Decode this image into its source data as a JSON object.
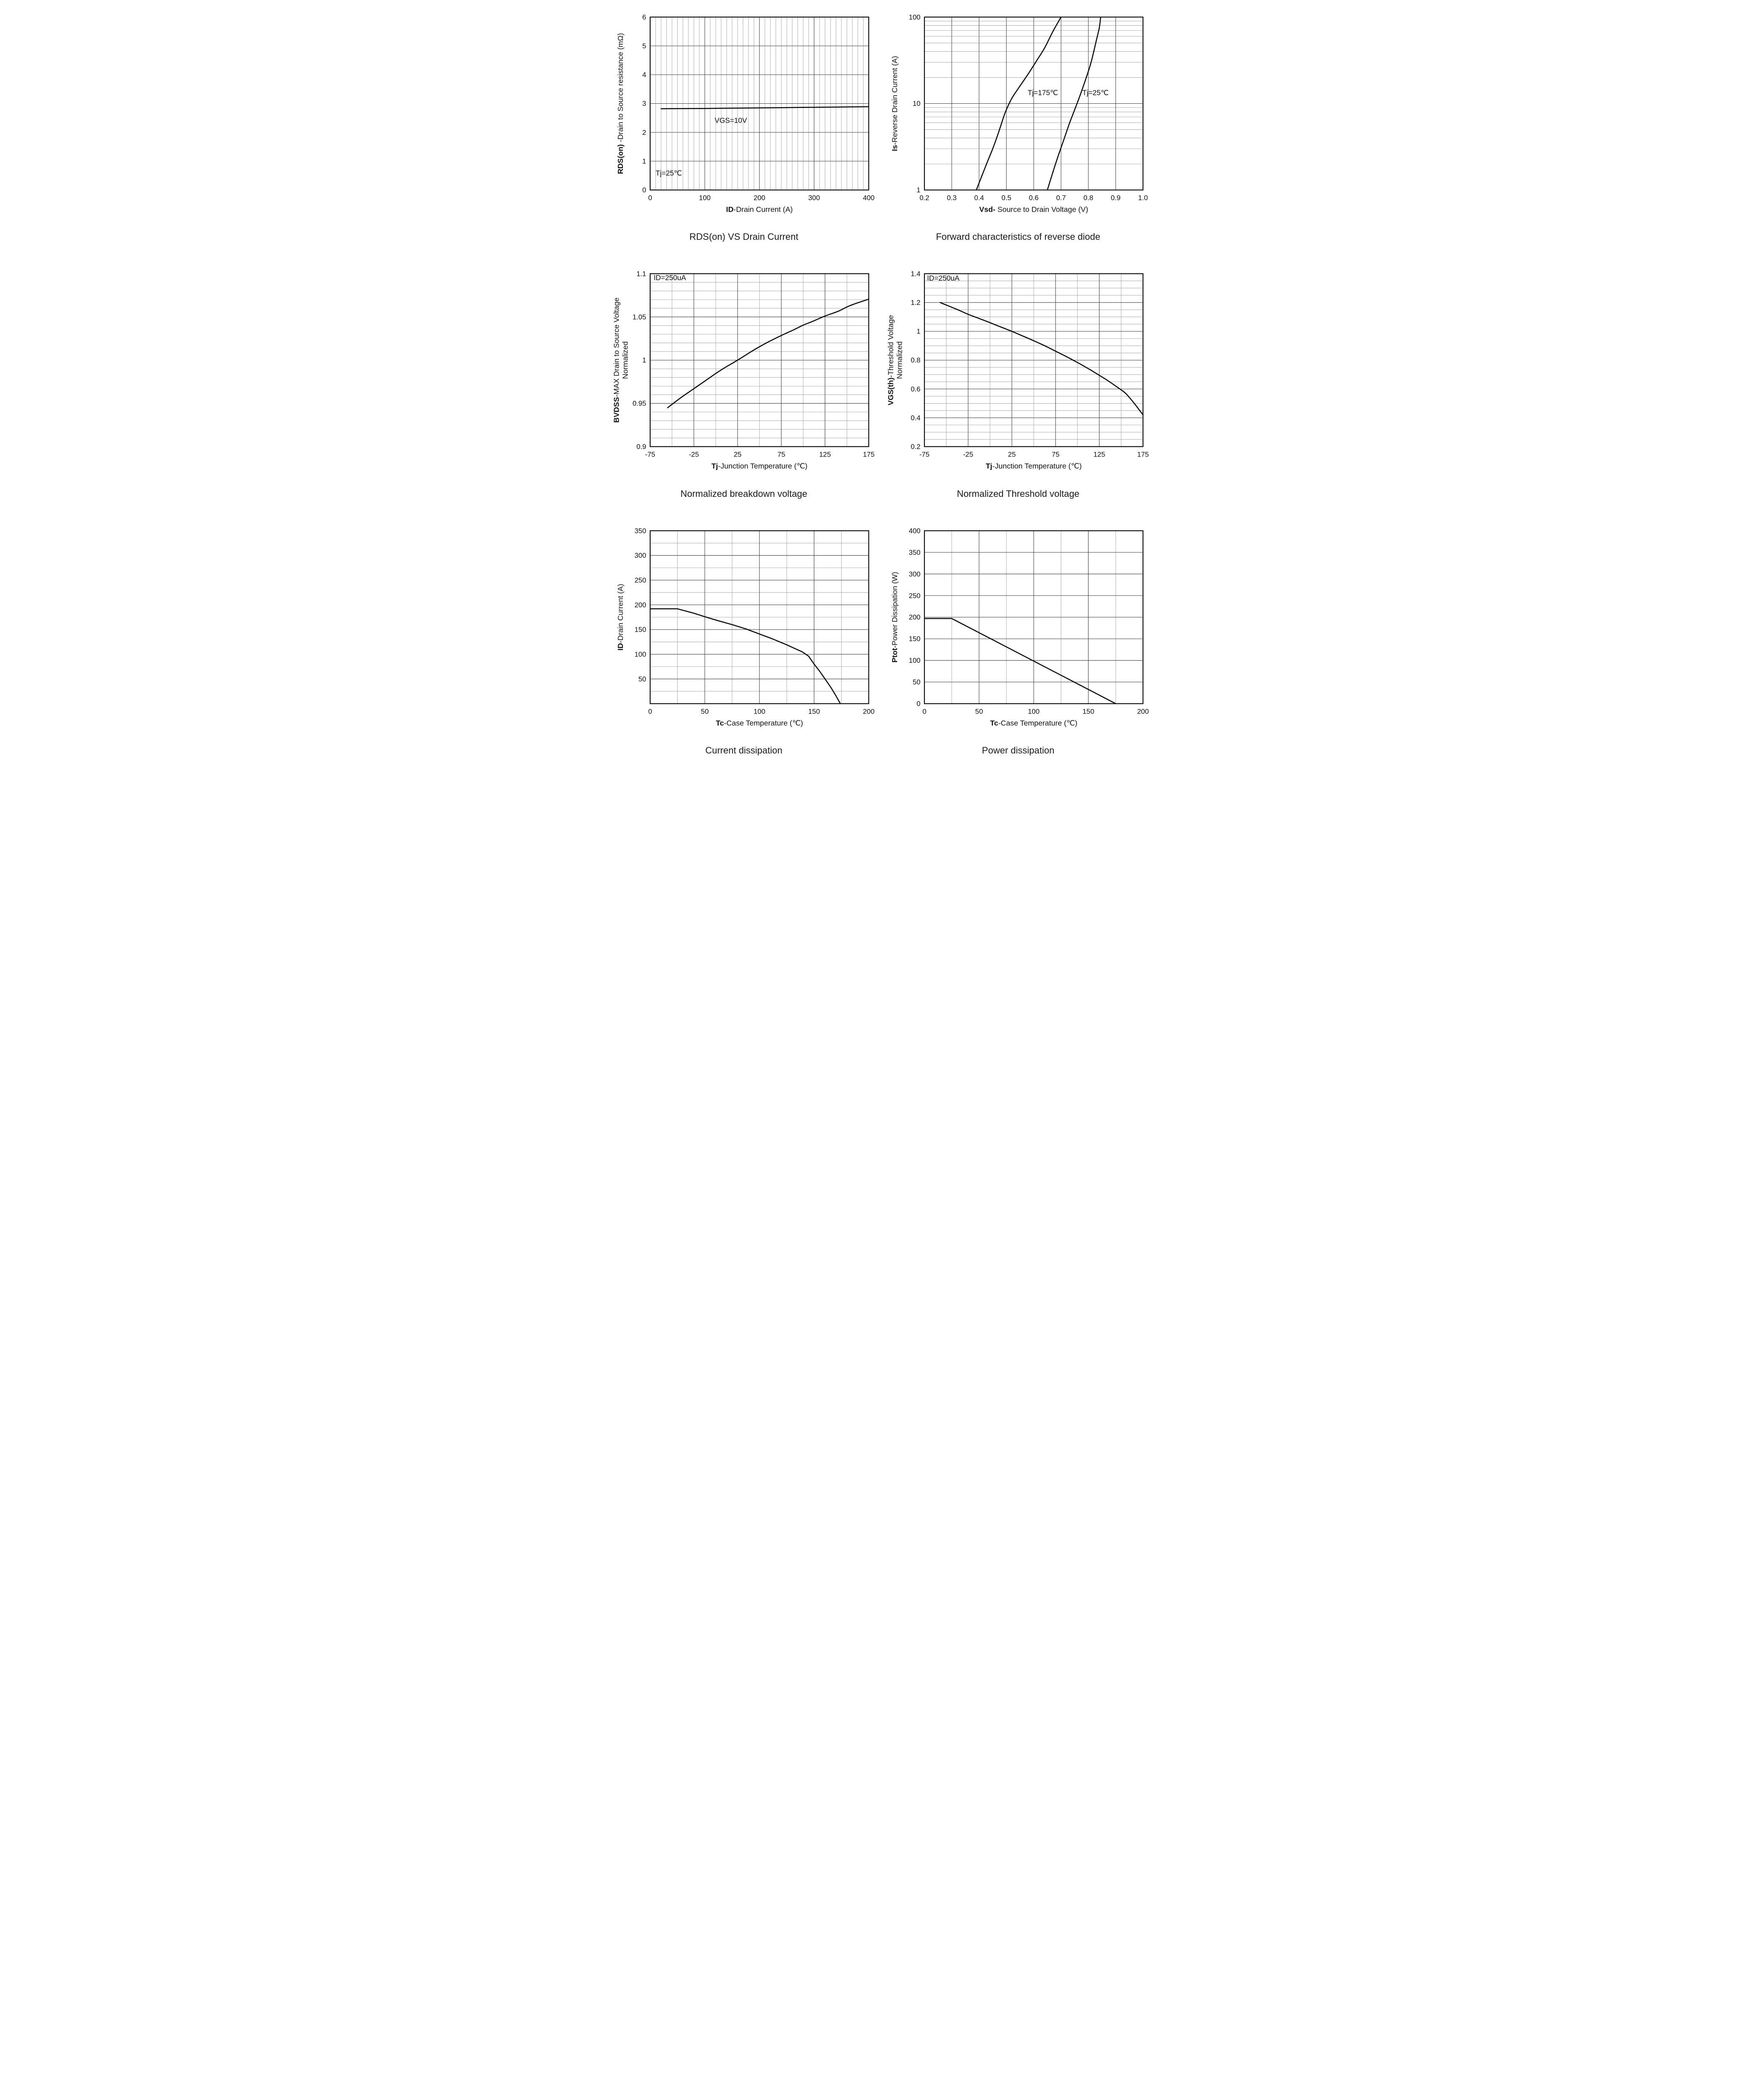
{
  "page": {
    "background": "#ffffff"
  },
  "colors": {
    "curve": "#0a0a0a",
    "grid_minor": "#9b9b9b",
    "grid_major": "#3c3c3c",
    "axis": "#000000",
    "text": "#111111"
  },
  "chart_data": [
    {
      "type": "line",
      "title": "RDS(on) VS Drain Current",
      "xlabel": {
        "bold": "ID",
        "rest": "-Drain Current (A)"
      },
      "ylabel": {
        "bold": "RDS(on)",
        "rest": " -Drain to Source resistance (mΩ)"
      },
      "xscale": "linear",
      "yscale": "linear",
      "xlim": [
        0,
        400
      ],
      "ylim": [
        0,
        6
      ],
      "xticks": [
        0,
        100,
        200,
        300,
        400
      ],
      "xtick_labels": [
        "0",
        "100",
        "200",
        "300",
        "400"
      ],
      "yticks": [
        0,
        1,
        2,
        3,
        4,
        5,
        6
      ],
      "ytick_labels": [
        "0",
        "1",
        "2",
        "3",
        "4",
        "5",
        "6"
      ],
      "xminor": 10,
      "yminor": null,
      "smooth": true,
      "series": [
        {
          "name": "rdson-vgs10v",
          "points": [
            [
              20,
              2.82
            ],
            [
              60,
              2.825
            ],
            [
              100,
              2.83
            ],
            [
              140,
              2.838
            ],
            [
              180,
              2.845
            ],
            [
              220,
              2.853
            ],
            [
              260,
              2.861
            ],
            [
              300,
              2.869
            ],
            [
              340,
              2.877
            ],
            [
              400,
              2.89
            ]
          ]
        }
      ],
      "annotations": [
        {
          "text": "VGS=10V",
          "x": 118,
          "y": 2.33,
          "anchor": "start"
        },
        {
          "text": "Tj=25℃",
          "x": 10,
          "y": 0.5,
          "anchor": "start"
        }
      ]
    },
    {
      "type": "line",
      "title": "Forward characteristics of reverse diode",
      "xlabel": {
        "bold": "Vsd-",
        "rest": " Source to Drain Voltage (V)"
      },
      "ylabel": {
        "bold": "Is",
        "rest": "-Reverse  Drain Current (A)"
      },
      "xscale": "linear",
      "yscale": "log",
      "xlim": [
        0.2,
        1.0
      ],
      "ylim": [
        1,
        100
      ],
      "xticks": [
        0.2,
        0.3,
        0.4,
        0.5,
        0.6,
        0.7,
        0.8,
        0.9,
        1.0
      ],
      "xtick_labels": [
        "0.2",
        "0.3",
        "0.4",
        "0.5",
        "0.6",
        "0.7",
        "0.8",
        "0.9",
        "1.0"
      ],
      "yticks": [
        1,
        10,
        100
      ],
      "ytick_labels": [
        "1",
        "10",
        "100"
      ],
      "xminor": null,
      "yminor": null,
      "smooth": true,
      "series": [
        {
          "name": "Tj=175C",
          "points": [
            [
              0.39,
              1
            ],
            [
              0.41,
              1.45
            ],
            [
              0.43,
              2.1
            ],
            [
              0.45,
              3.0
            ],
            [
              0.47,
              4.5
            ],
            [
              0.49,
              7.0
            ],
            [
              0.5,
              8.5
            ],
            [
              0.52,
              11.5
            ],
            [
              0.55,
              16
            ],
            [
              0.58,
              22
            ],
            [
              0.61,
              31
            ],
            [
              0.64,
              44
            ],
            [
              0.67,
              68
            ],
            [
              0.69,
              88
            ],
            [
              0.7,
              100
            ]
          ]
        },
        {
          "name": "Tj=25C",
          "points": [
            [
              0.65,
              1
            ],
            [
              0.67,
              1.6
            ],
            [
              0.69,
              2.5
            ],
            [
              0.71,
              3.8
            ],
            [
              0.73,
              5.8
            ],
            [
              0.75,
              8.5
            ],
            [
              0.77,
              12.5
            ],
            [
              0.79,
              19
            ],
            [
              0.81,
              30
            ],
            [
              0.83,
              55
            ],
            [
              0.84,
              75
            ],
            [
              0.845,
              100
            ]
          ]
        }
      ],
      "annotations": [
        {
          "text": "Tj=175℃",
          "x": 0.578,
          "y": 12.5,
          "anchor": "start"
        },
        {
          "text": "Tj=25℃",
          "x": 0.778,
          "y": 12.5,
          "anchor": "start"
        }
      ]
    },
    {
      "type": "line",
      "title": "Normalized breakdown voltage",
      "xlabel": {
        "bold": "Tj",
        "rest": "-Junction  Temperature (℃)"
      },
      "ylabel": {
        "bold": "BVDSS",
        "rest": "-MAX Drain to Source Voltage",
        "line2": "Normalized"
      },
      "xscale": "linear",
      "yscale": "linear",
      "xlim": [
        -75,
        175
      ],
      "ylim": [
        0.9,
        1.1
      ],
      "xticks": [
        -75,
        -25,
        25,
        75,
        125,
        175
      ],
      "xtick_labels": [
        "-75",
        "-25",
        "25",
        "75",
        "125",
        "175"
      ],
      "yticks": [
        0.9,
        0.95,
        1,
        1.05,
        1.1
      ],
      "ytick_labels": [
        "0.9",
        "0.95",
        "1",
        "1.05",
        "1.1"
      ],
      "xminor": 25,
      "yminor": 0.01,
      "smooth": true,
      "series": [
        {
          "name": "bvdss-normalized",
          "points": [
            [
              -55,
              0.945
            ],
            [
              -40,
              0.9565
            ],
            [
              -25,
              0.967
            ],
            [
              -10,
              0.9775
            ],
            [
              0,
              0.9845
            ],
            [
              10,
              0.991
            ],
            [
              25,
              1.0
            ],
            [
              40,
              1.0095
            ],
            [
              50,
              1.0155
            ],
            [
              60,
              1.021
            ],
            [
              75,
              1.0285
            ],
            [
              90,
              1.0355
            ],
            [
              100,
              1.0405
            ],
            [
              110,
              1.0445
            ],
            [
              125,
              1.051
            ],
            [
              140,
              1.0565
            ],
            [
              150,
              1.0615
            ],
            [
              160,
              1.0655
            ],
            [
              175,
              1.0705
            ]
          ]
        }
      ],
      "annotations": [
        {
          "text": "ID=250uA",
          "x": -71,
          "y": 1.0925,
          "anchor": "start"
        }
      ]
    },
    {
      "type": "line",
      "title": "Normalized Threshold voltage",
      "xlabel": {
        "bold": "Tj",
        "rest": "-Junction  Temperature (℃)"
      },
      "ylabel": {
        "bold": "VGS(th)",
        "rest": "-Threshold  Voltage",
        "line2": "Normalized"
      },
      "xscale": "linear",
      "yscale": "linear",
      "xlim": [
        -75,
        175
      ],
      "ylim": [
        0.2,
        1.4
      ],
      "xticks": [
        -75,
        -25,
        25,
        75,
        125,
        175
      ],
      "xtick_labels": [
        "-75",
        "-25",
        "25",
        "75",
        "125",
        "175"
      ],
      "yticks": [
        0.2,
        0.4,
        0.6,
        0.8,
        1,
        1.2,
        1.4
      ],
      "ytick_labels": [
        "0.2",
        "0.4",
        "0.6",
        "0.8",
        "1",
        "1.2",
        "1.4"
      ],
      "xminor": 25,
      "yminor": 0.05,
      "smooth": true,
      "series": [
        {
          "name": "vgsth-normalized",
          "points": [
            [
              -57,
              1.2
            ],
            [
              -45,
              1.17
            ],
            [
              -35,
              1.145
            ],
            [
              -25,
              1.118
            ],
            [
              -15,
              1.095
            ],
            [
              -5,
              1.072
            ],
            [
              5,
              1.048
            ],
            [
              15,
              1.024
            ],
            [
              25,
              1.0
            ],
            [
              35,
              0.974
            ],
            [
              45,
              0.948
            ],
            [
              55,
              0.921
            ],
            [
              65,
              0.893
            ],
            [
              75,
              0.862
            ],
            [
              85,
              0.832
            ],
            [
              95,
              0.8
            ],
            [
              105,
              0.767
            ],
            [
              115,
              0.732
            ],
            [
              125,
              0.695
            ],
            [
              135,
              0.657
            ],
            [
              145,
              0.615
            ],
            [
              155,
              0.57
            ],
            [
              165,
              0.5
            ],
            [
              175,
              0.42
            ]
          ]
        }
      ],
      "annotations": [
        {
          "text": "ID=250uA",
          "x": -72,
          "y": 1.352,
          "anchor": "start"
        }
      ]
    },
    {
      "type": "line",
      "title": "Current dissipation",
      "xlabel": {
        "bold": "Tc",
        "rest": "-Case Temperature (℃)"
      },
      "ylabel": {
        "bold": "ID",
        "rest": "-Drain Current (A)"
      },
      "xscale": "linear",
      "yscale": "linear",
      "xlim": [
        0,
        200
      ],
      "ylim": [
        0,
        350
      ],
      "xticks": [
        0,
        50,
        100,
        150,
        200
      ],
      "xtick_labels": [
        "0",
        "50",
        "100",
        "150",
        "200"
      ],
      "yticks": [
        50,
        100,
        150,
        200,
        250,
        300,
        350
      ],
      "ytick_labels": [
        "50",
        "100",
        "150",
        "200",
        "250",
        "300",
        "350"
      ],
      "xminor": 25,
      "yminor": 25,
      "smooth": false,
      "series": [
        {
          "name": "id-max-vs-tc",
          "points": [
            [
              0,
              192
            ],
            [
              25,
              192
            ],
            [
              40,
              183
            ],
            [
              50,
              176
            ],
            [
              62,
              168
            ],
            [
              75,
              160
            ],
            [
              88,
              151
            ],
            [
              100,
              141
            ],
            [
              112,
              131
            ],
            [
              125,
              119
            ],
            [
              132,
              112
            ],
            [
              139,
              105
            ],
            [
              145,
              96
            ],
            [
              150,
              80
            ],
            [
              155,
              66
            ],
            [
              160,
              50
            ],
            [
              165,
              34
            ],
            [
              170,
              16
            ],
            [
              174,
              0
            ]
          ]
        }
      ],
      "annotations": []
    },
    {
      "type": "line",
      "title": "Power dissipation",
      "xlabel": {
        "bold": "Tc",
        "rest": "-Case Temperature (℃)"
      },
      "ylabel": {
        "bold": "Ptot",
        "rest": "-Power Dissipation (W)"
      },
      "xscale": "linear",
      "yscale": "linear",
      "xlim": [
        0,
        200
      ],
      "ylim": [
        0,
        400
      ],
      "xticks": [
        0,
        50,
        100,
        150,
        200
      ],
      "xtick_labels": [
        "0",
        "50",
        "100",
        "150",
        "200"
      ],
      "yticks": [
        0,
        50,
        100,
        150,
        200,
        250,
        300,
        350,
        400
      ],
      "ytick_labels": [
        "0",
        "50",
        "100",
        "150",
        "200",
        "250",
        "300",
        "350",
        "400"
      ],
      "xminor": 25,
      "yminor": null,
      "smooth": false,
      "series": [
        {
          "name": "ptot-vs-tc",
          "points": [
            [
              0,
              197
            ],
            [
              25,
              197
            ],
            [
              175,
              0
            ]
          ]
        }
      ],
      "annotations": []
    }
  ]
}
